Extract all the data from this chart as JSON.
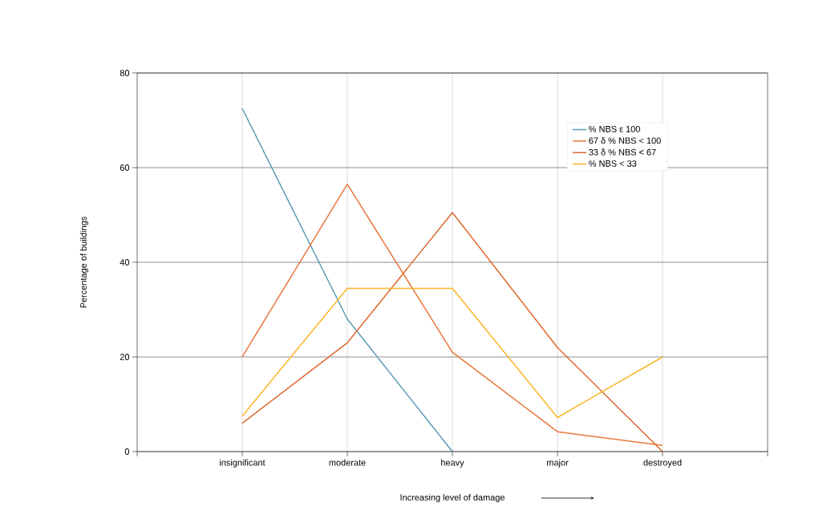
{
  "chart_data": {
    "type": "line",
    "xlabel": "Increasing level of damage",
    "ylabel": "Percentage of buildings",
    "categories": [
      "insignificant",
      "moderate",
      "heavy",
      "major",
      "destroyed"
    ],
    "series": [
      {
        "name": "% NBS ε 100",
        "color": "#5b9bb5",
        "values": [
          72.5,
          28,
          0,
          null,
          null
        ]
      },
      {
        "name": "67 δ % NBS < 100",
        "color": "#e8783c",
        "values": [
          20,
          56.5,
          21,
          4.2,
          1.3
        ]
      },
      {
        "name": "33 δ % NBS < 67",
        "color": "#dd6a30",
        "values": [
          6,
          23,
          50.5,
          22,
          0
        ]
      },
      {
        "name": "% NBS < 33",
        "color": "#fbb526",
        "values": [
          7.5,
          34.5,
          34.5,
          7.2,
          20
        ]
      }
    ],
    "ylim": [
      0,
      80
    ],
    "yticks": [
      0,
      20,
      40,
      60,
      80
    ],
    "grid": true,
    "legend": "top right",
    "marker": "none",
    "line_style": "solid"
  }
}
